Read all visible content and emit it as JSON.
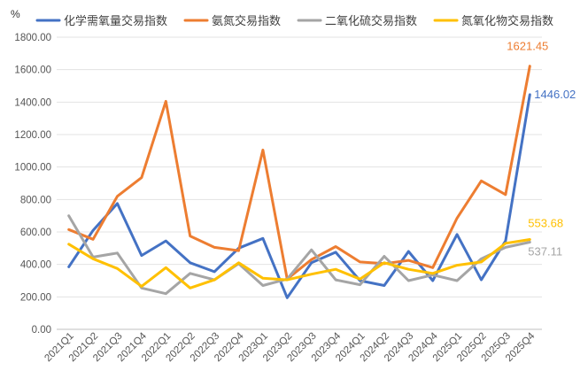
{
  "chart_data": {
    "type": "line",
    "title": "",
    "xlabel": "",
    "ylabel": "",
    "unit_label": "%",
    "ylim": [
      0,
      1800
    ],
    "yticks": [
      "0.00",
      "200.00",
      "400.00",
      "600.00",
      "800.00",
      "1000.00",
      "1200.00",
      "1400.00",
      "1600.00",
      "1800.00"
    ],
    "grid": true,
    "legend_position": "top",
    "categories": [
      "2021Q1",
      "2021Q2",
      "2021Q3",
      "2021Q4",
      "2022Q1",
      "2022Q2",
      "2022Q3",
      "2022Q4",
      "2023Q1",
      "2023Q2",
      "2023Q3",
      "2023Q4",
      "2024Q1",
      "2024Q2",
      "2024Q3",
      "2024Q4",
      "2025Q1",
      "2025Q2",
      "2025Q3",
      "2025Q4"
    ],
    "series": [
      {
        "name": "化学需氧量交易指数",
        "color": "#4472C4",
        "values": [
          385,
          610,
          775,
          455,
          545,
          410,
          355,
          500,
          560,
          195,
          410,
          475,
          300,
          270,
          480,
          300,
          585,
          305,
          545,
          1446.02
        ]
      },
      {
        "name": "氨氮交易指数",
        "color": "#ED7D31",
        "values": [
          615,
          555,
          820,
          935,
          1405,
          575,
          505,
          485,
          1105,
          310,
          430,
          510,
          415,
          405,
          425,
          380,
          685,
          915,
          830,
          1621.45
        ]
      },
      {
        "name": "二氧化硫交易指数",
        "color": "#A5A5A5",
        "values": [
          700,
          445,
          470,
          255,
          220,
          345,
          305,
          405,
          270,
          310,
          490,
          305,
          275,
          450,
          300,
          335,
          300,
          435,
          505,
          537.11
        ]
      },
      {
        "name": "氮氧化物交易指数",
        "color": "#FFC000",
        "values": [
          525,
          435,
          375,
          265,
          380,
          255,
          305,
          410,
          315,
          305,
          340,
          370,
          310,
          410,
          370,
          345,
          395,
          415,
          530,
          553.68
        ]
      }
    ],
    "annotations": [
      {
        "series": "氨氮交易指数",
        "text": "1621.45"
      },
      {
        "series": "化学需氧量交易指数",
        "text": "1446.02"
      },
      {
        "series": "氮氧化物交易指数",
        "text": "553.68"
      },
      {
        "series": "二氧化硫交易指数",
        "text": "537.11"
      }
    ]
  }
}
